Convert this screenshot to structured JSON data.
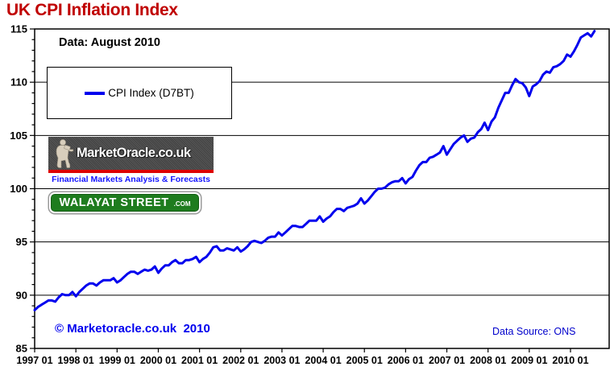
{
  "page": {
    "title": "UK CPI Inflation Index"
  },
  "annotations": {
    "data_vintage": "Data: August 2010",
    "copyright": "© Marketoracle.co.uk  2010",
    "data_source": "Data Source: ONS"
  },
  "legend": {
    "series_label": "CPI Index (D7BT)"
  },
  "logos": {
    "market_oracle": {
      "title": "MarketOracle.co.uk",
      "tagline": "Financial Markets Analysis & Forecasts"
    },
    "walayat_street": {
      "title": "WALAYAT STREET",
      "suffix": ".COM"
    }
  },
  "colors": {
    "title": "#C00000",
    "series_line": "#0000EE",
    "copyright_text": "#0000EE",
    "datasource_text": "#0000CC",
    "logo_banner": "#4B4B4B",
    "logo_stripe": "#DD0000",
    "logo_tagline": "#1414FF",
    "walayat_green": "#1E7C1E",
    "axis": "#000000"
  },
  "chart_data": {
    "type": "line",
    "title": "UK CPI Inflation Index",
    "subtitle": "Data: August 2010",
    "xlabel": "",
    "ylabel": "",
    "ylim": [
      85,
      115
    ],
    "y_ticks": [
      85,
      90,
      95,
      100,
      105,
      110,
      115
    ],
    "y_minor_tick_interval": 1,
    "grid": "horizontal major gridlines only",
    "legend_position": "top-left box",
    "data_source": "ONS",
    "x_tick_labels": [
      "1997 01",
      "1998 01",
      "1999 01",
      "2000 01",
      "2001 01",
      "2002 01",
      "2003 01",
      "2004 01",
      "2005 01",
      "2006 01",
      "2007 01",
      "2008 01",
      "2009 01",
      "2010 01"
    ],
    "series": [
      {
        "name": "CPI Index (D7BT)",
        "color": "#0000EE",
        "frequency": "monthly",
        "start_month": "1997-01",
        "end_month": "2010-08",
        "values": [
          88.6,
          88.9,
          89.1,
          89.3,
          89.5,
          89.5,
          89.4,
          89.8,
          90.1,
          90.0,
          90.0,
          90.3,
          89.9,
          90.3,
          90.6,
          90.9,
          91.1,
          91.1,
          90.9,
          91.2,
          91.4,
          91.4,
          91.4,
          91.6,
          91.2,
          91.4,
          91.7,
          92.0,
          92.2,
          92.2,
          92.0,
          92.2,
          92.4,
          92.3,
          92.4,
          92.7,
          92.1,
          92.5,
          92.8,
          92.8,
          93.1,
          93.3,
          93.0,
          93.0,
          93.3,
          93.3,
          93.4,
          93.6,
          93.1,
          93.4,
          93.6,
          94.0,
          94.5,
          94.6,
          94.2,
          94.2,
          94.4,
          94.3,
          94.2,
          94.5,
          94.1,
          94.3,
          94.6,
          95.0,
          95.1,
          95.0,
          94.9,
          95.1,
          95.4,
          95.5,
          95.5,
          95.9,
          95.6,
          95.9,
          96.2,
          96.5,
          96.5,
          96.4,
          96.4,
          96.7,
          97.0,
          97.0,
          97.0,
          97.4,
          96.9,
          97.2,
          97.4,
          97.8,
          98.1,
          98.1,
          97.9,
          98.2,
          98.3,
          98.4,
          98.6,
          99.1,
          98.6,
          98.9,
          99.3,
          99.7,
          100.0,
          100.0,
          100.1,
          100.4,
          100.6,
          100.7,
          100.7,
          101.0,
          100.5,
          100.9,
          101.1,
          101.7,
          102.2,
          102.5,
          102.5,
          102.9,
          103.0,
          103.2,
          103.4,
          104.0,
          103.2,
          103.7,
          104.2,
          104.5,
          104.8,
          105.0,
          104.4,
          104.7,
          104.8,
          105.3,
          105.6,
          106.2,
          105.5,
          106.3,
          106.7,
          107.6,
          108.3,
          109.0,
          109.0,
          109.7,
          110.3,
          110.0,
          109.9,
          109.5,
          108.7,
          109.6,
          109.8,
          110.1,
          110.7,
          111.0,
          110.9,
          111.4,
          111.5,
          111.7,
          112.0,
          112.6,
          112.4,
          112.9,
          113.5,
          114.2,
          114.4,
          114.6,
          114.3,
          114.8
        ]
      }
    ]
  }
}
